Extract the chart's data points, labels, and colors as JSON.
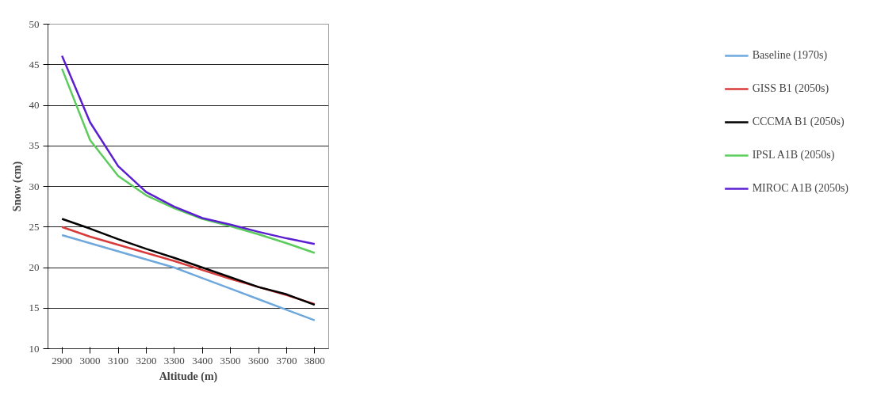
{
  "chart_data": {
    "type": "line",
    "xlabel": "Altitude (m)",
    "ylabel": "Snow (cm)",
    "categories": [
      "2900",
      "3000",
      "3100",
      "3200",
      "3300",
      "3400",
      "3500",
      "3600",
      "3700",
      "3800"
    ],
    "ylim": [
      10,
      50
    ],
    "yticks": [
      10,
      15,
      20,
      25,
      30,
      35,
      40,
      45,
      50
    ],
    "grid": "y",
    "legend": "right",
    "marker": "none",
    "line_style": "solid",
    "series": [
      {
        "name": "Baseline (1970s)",
        "color": "#6fa8dc",
        "values": [
          24,
          23,
          22,
          21,
          20,
          18.7,
          17.4,
          16.1,
          14.8,
          13.5
        ]
      },
      {
        "name": "GISS B1 (2050s)",
        "color": "#d93a3a",
        "values": [
          25,
          23.8,
          22.8,
          21.8,
          20.8,
          19.7,
          18.6,
          17.6,
          16.6,
          15.5
        ]
      },
      {
        "name": "CCCMA B1 (2050s)",
        "color": "#000000",
        "values": [
          26,
          24.8,
          23.5,
          22.3,
          21.2,
          20,
          18.8,
          17.6,
          16.7,
          15.4
        ]
      },
      {
        "name": "IPSL A1B (2050s)",
        "color": "#5ccc5c",
        "values": [
          44.5,
          35.7,
          31.3,
          28.9,
          27.3,
          26,
          25.1,
          24.1,
          23,
          21.8
        ]
      },
      {
        "name": "MIROC A1B (2050s)",
        "color": "#5b1fd1",
        "values": [
          46.1,
          37.9,
          32.5,
          29.3,
          27.5,
          26.1,
          25.3,
          24.4,
          23.6,
          22.9
        ]
      }
    ]
  }
}
